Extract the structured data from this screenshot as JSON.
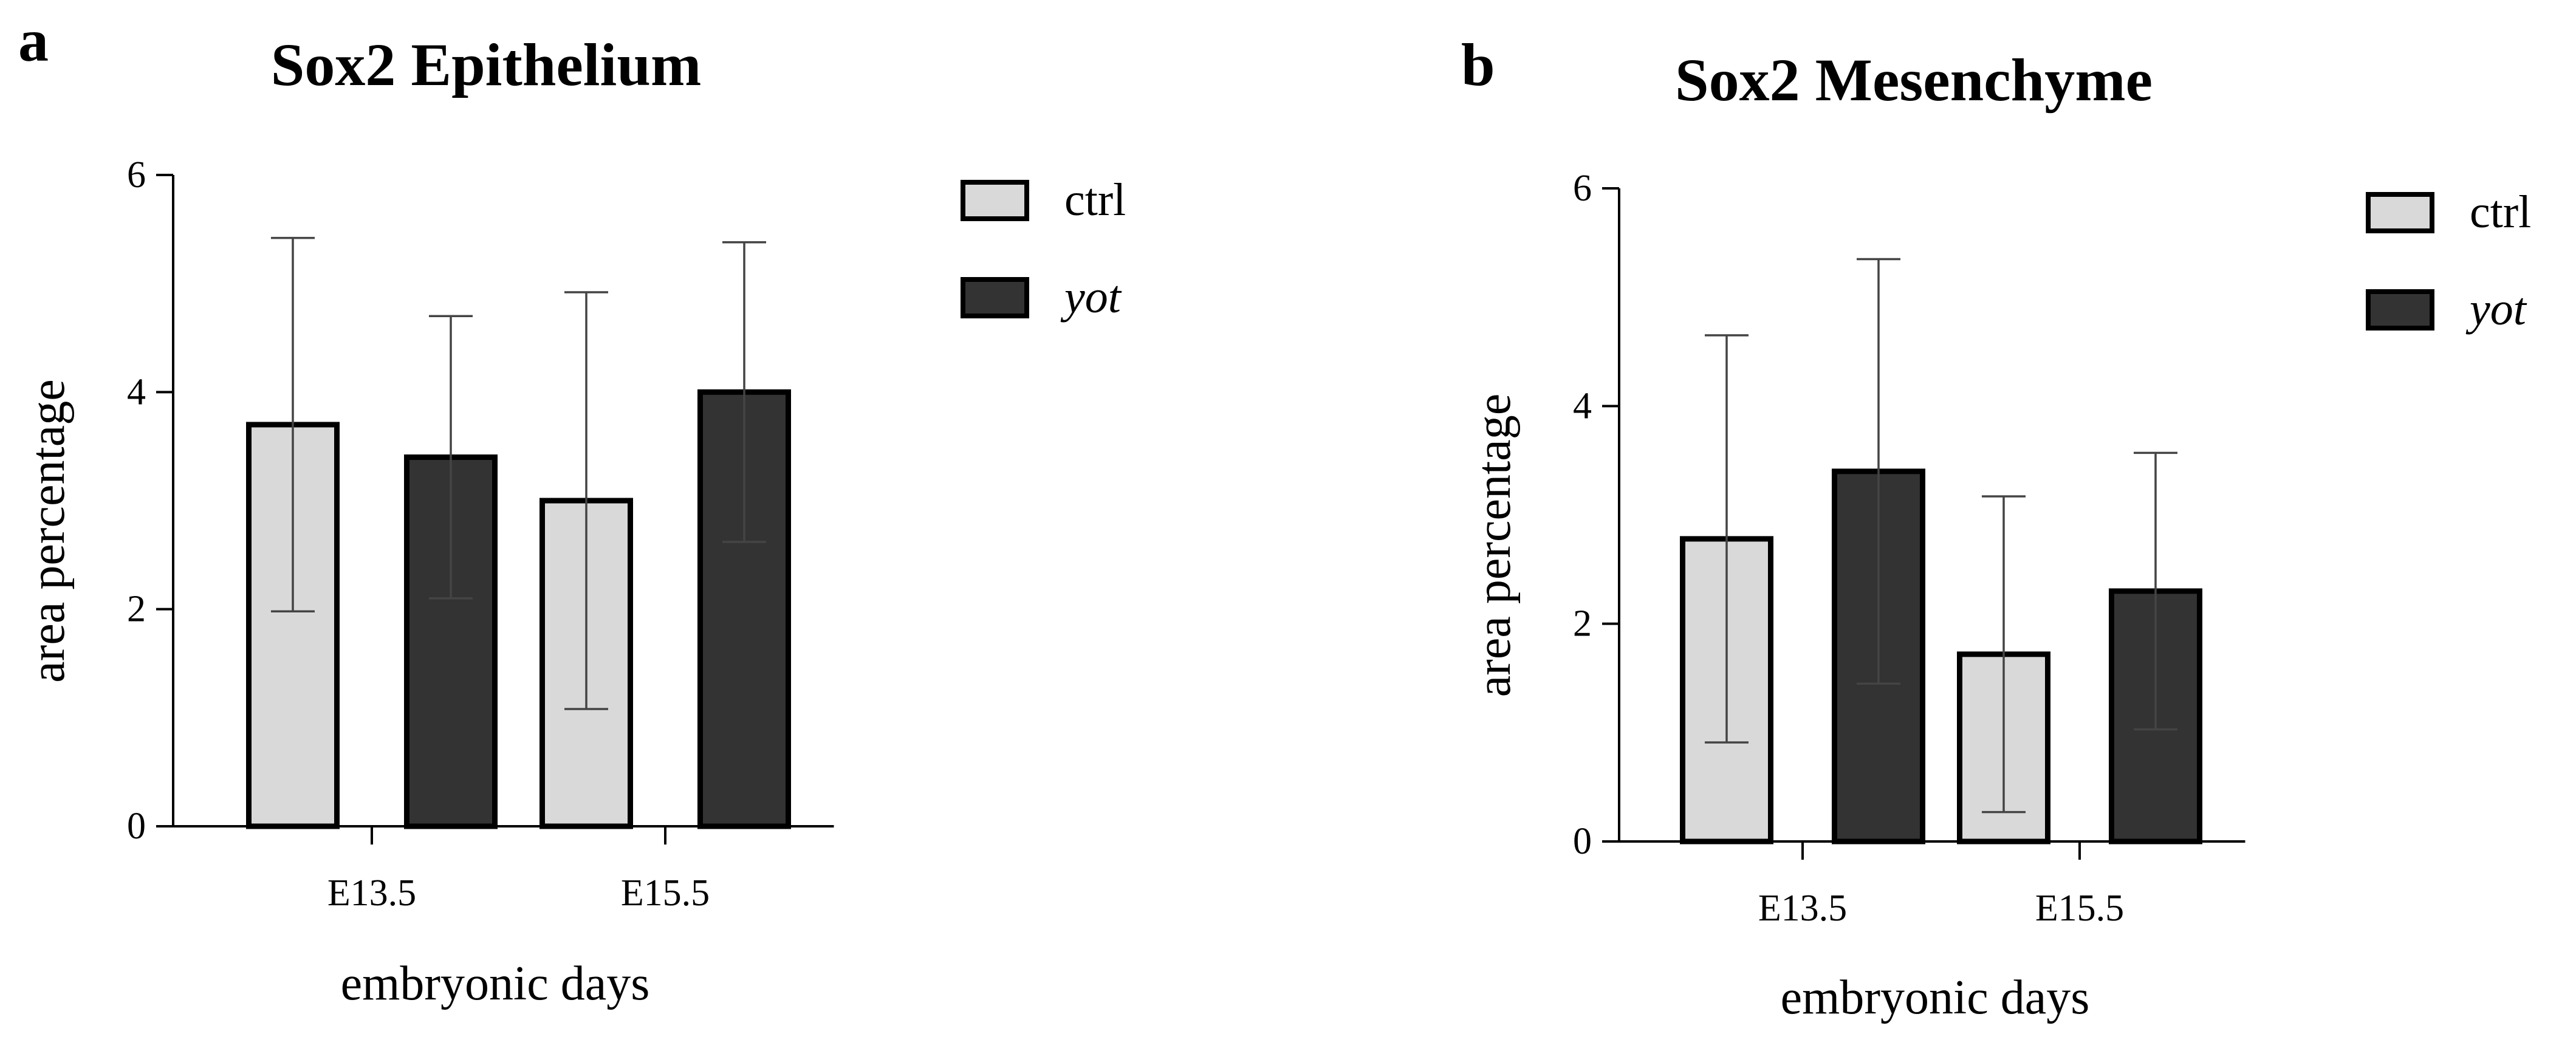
{
  "colors": {
    "ctrl": "#d9d9d9",
    "yot": "#333333",
    "stroke": "#000000",
    "error_bar": "#444444"
  },
  "chart_data": [
    {
      "panel": "a",
      "type": "bar",
      "title": "Sox2 Epithelium",
      "xlabel": "embryonic days",
      "ylabel": "area percentage",
      "categories": [
        "E13.5",
        "E15.5"
      ],
      "ylim": [
        0,
        6
      ],
      "yticks": [
        "0",
        "2",
        "4",
        "6"
      ],
      "legend_position": "top-right",
      "series": [
        {
          "name": "ctrl",
          "italic": false,
          "values": [
            3.7,
            3.0
          ],
          "errors": [
            1.72,
            1.92
          ]
        },
        {
          "name": "yot",
          "italic": true,
          "values": [
            3.4,
            4.0
          ],
          "errors": [
            1.3,
            1.38
          ]
        }
      ]
    },
    {
      "panel": "b",
      "type": "bar",
      "title": "Sox2 Mesenchyme",
      "xlabel": "embryonic days",
      "ylabel": "area percentage",
      "categories": [
        "E13.5",
        "E15.5"
      ],
      "ylim": [
        0,
        6
      ],
      "yticks": [
        "0",
        "2",
        "4",
        "6"
      ],
      "legend_position": "top-right",
      "series": [
        {
          "name": "ctrl",
          "italic": false,
          "values": [
            2.78,
            1.72
          ],
          "errors": [
            1.87,
            1.45
          ]
        },
        {
          "name": "yot",
          "italic": true,
          "values": [
            3.4,
            2.3
          ],
          "errors": [
            1.95,
            1.27
          ]
        }
      ]
    }
  ]
}
